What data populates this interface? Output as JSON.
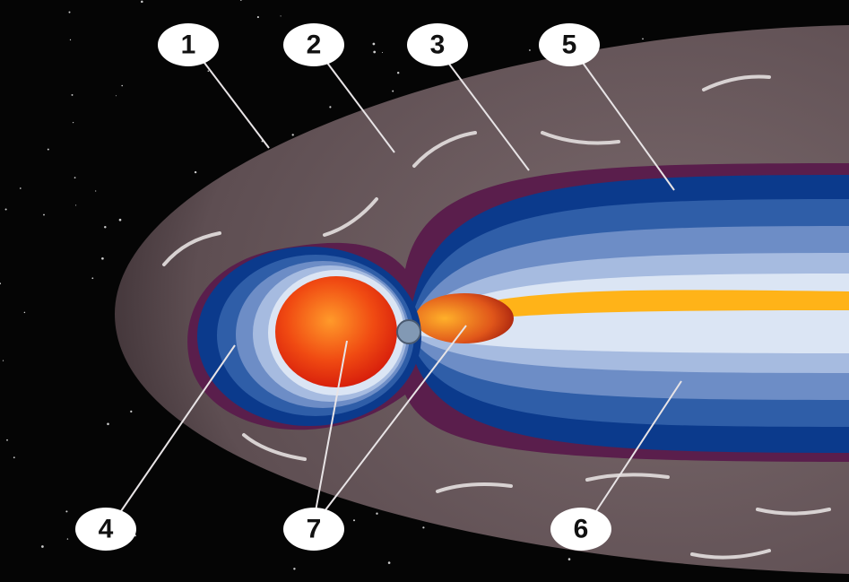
{
  "labels": [
    {
      "label": "1"
    },
    {
      "label": "2"
    },
    {
      "label": "3"
    },
    {
      "label": "4"
    },
    {
      "label": "5"
    },
    {
      "label": "6"
    },
    {
      "label": "7"
    }
  ]
}
